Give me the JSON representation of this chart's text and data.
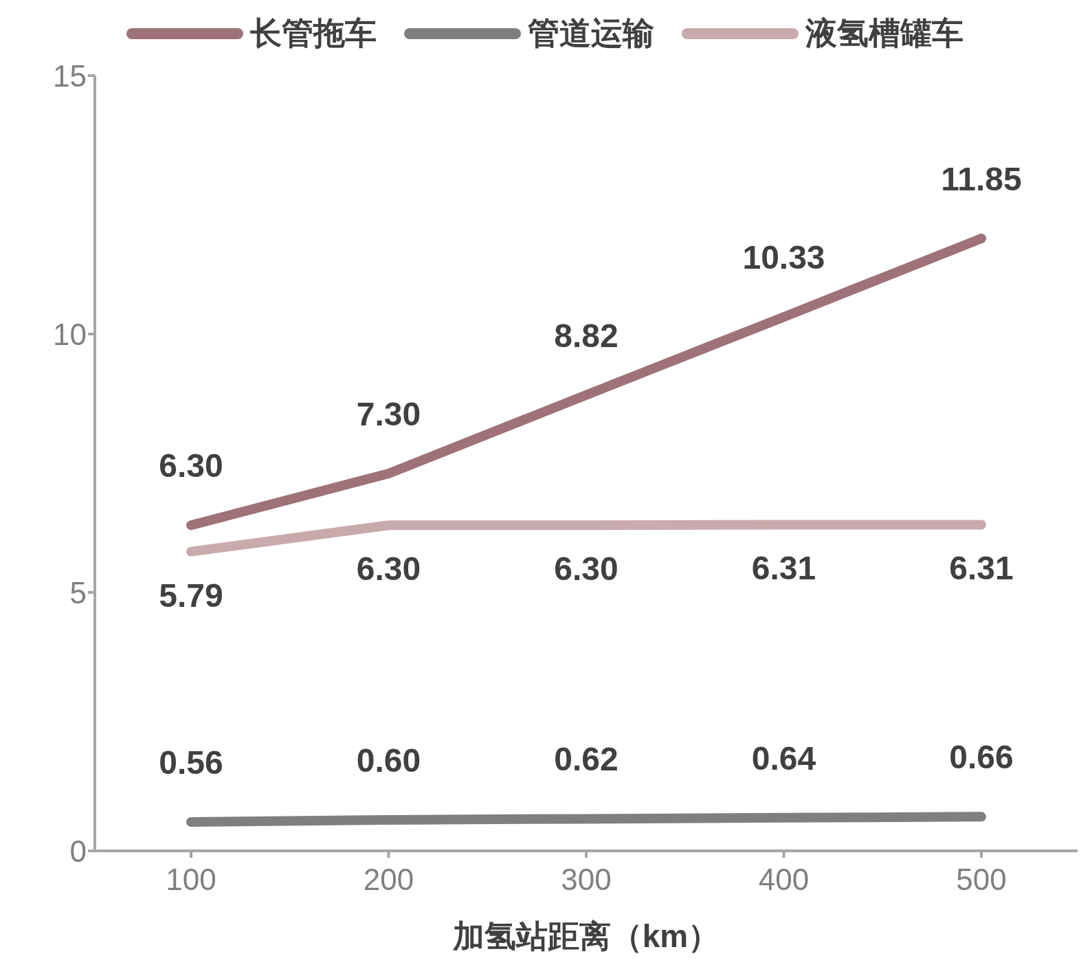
{
  "chart_data": {
    "type": "line",
    "xlabel": "加氢站距离（km）",
    "categories": [
      "100",
      "200",
      "300",
      "400",
      "500"
    ],
    "series": [
      {
        "name": "长管拖车",
        "color": "#9e7278",
        "values": [
          6.3,
          7.3,
          8.82,
          10.33,
          11.85
        ],
        "value_labels": [
          "6.30",
          "7.30",
          "8.82",
          "10.33",
          "11.85"
        ]
      },
      {
        "name": "管道运输",
        "color": "#7f7f7f",
        "values": [
          0.56,
          0.6,
          0.62,
          0.64,
          0.66
        ],
        "value_labels": [
          "0.56",
          "0.60",
          "0.62",
          "0.64",
          "0.66"
        ]
      },
      {
        "name": "液氢槽罐车",
        "color": "#c9aaad",
        "values": [
          5.79,
          6.3,
          6.3,
          6.31,
          6.31
        ],
        "value_labels": [
          "5.79",
          "6.30",
          "6.30",
          "6.31",
          "6.31"
        ]
      }
    ],
    "ylim": [
      0,
      15
    ],
    "yticks": [
      0,
      5,
      10,
      15
    ],
    "grid": false,
    "legend": "top",
    "marker": "none",
    "line_style": "solid"
  }
}
